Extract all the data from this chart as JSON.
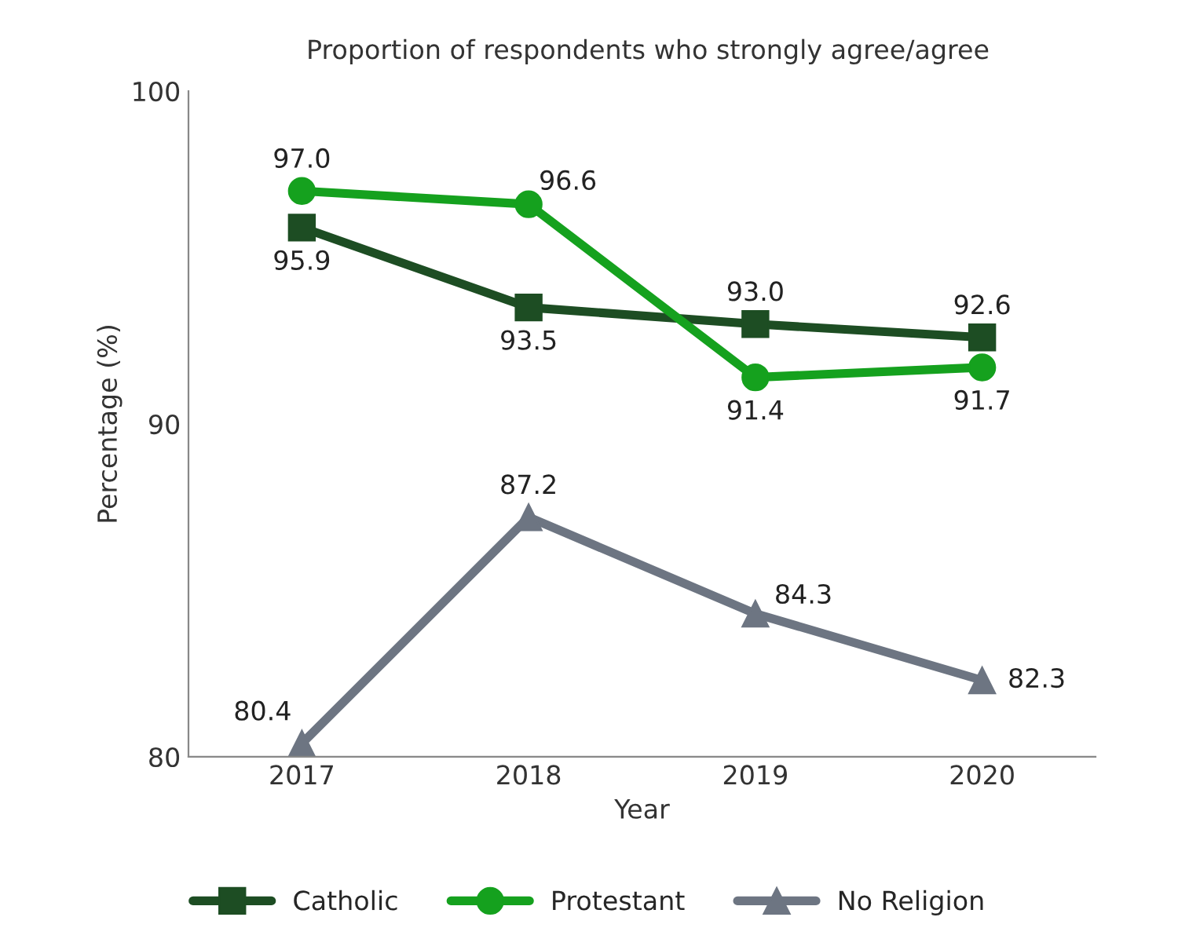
{
  "chart_data": {
    "type": "line",
    "title": "Proportion of respondents who strongly agree/agree",
    "xlabel": "Year",
    "ylabel": "Percentage (%)",
    "categories": [
      "2017",
      "2018",
      "2019",
      "2020"
    ],
    "series": [
      {
        "name": "Catholic",
        "color": "#1d4d23",
        "marker": "square",
        "values": [
          95.9,
          93.5,
          93.0,
          92.6
        ],
        "value_labels": [
          "95.9",
          "93.5",
          "93.0",
          "92.6"
        ]
      },
      {
        "name": "Protestant",
        "color": "#15a11e",
        "marker": "circle",
        "values": [
          97.0,
          96.6,
          91.4,
          91.7
        ],
        "value_labels": [
          "97.0",
          "96.6",
          "91.4",
          "91.7"
        ]
      },
      {
        "name": "No Religion",
        "color": "#6d7582",
        "marker": "triangle",
        "values": [
          80.4,
          87.2,
          84.3,
          82.3
        ],
        "value_labels": [
          "80.4",
          "87.2",
          "84.3",
          "82.3"
        ]
      }
    ],
    "ylim": [
      80,
      100
    ],
    "yticks": [
      80,
      90,
      100
    ],
    "grid": false,
    "legend": "bottom",
    "line_style": "solid"
  }
}
